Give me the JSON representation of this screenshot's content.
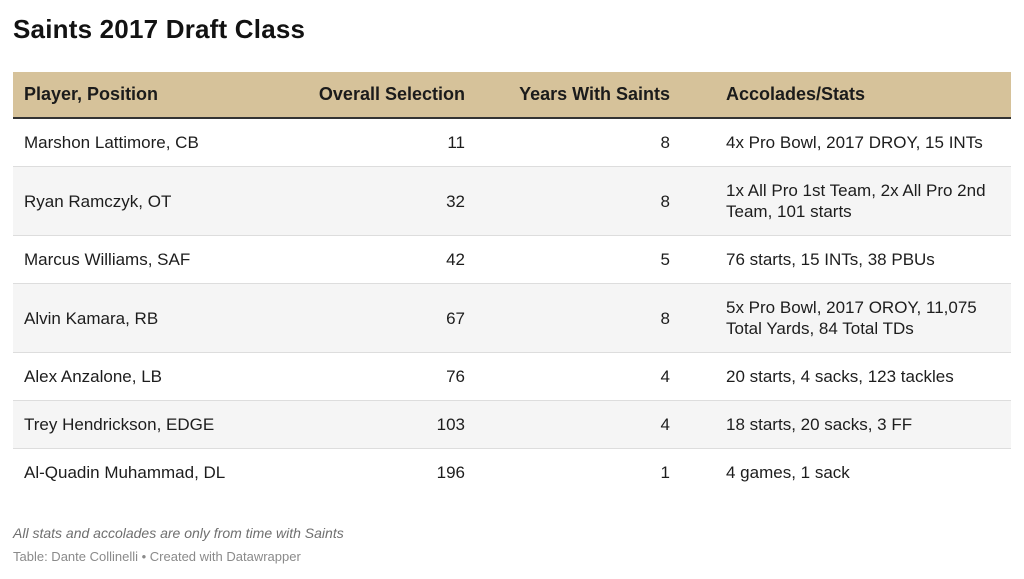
{
  "title": "Saints 2017 Draft Class",
  "columns": {
    "player": "Player, Position",
    "overall": "Overall Selection",
    "years": "Years With Saints",
    "accolades": "Accolades/Stats"
  },
  "rows": [
    {
      "player": "Marshon Lattimore, CB",
      "overall": "11",
      "years": "8",
      "accolades": "4x Pro Bowl, 2017 DROY, 15 INTs"
    },
    {
      "player": "Ryan Ramczyk, OT",
      "overall": "32",
      "years": "8",
      "accolades": "1x All Pro 1st Team, 2x All Pro 2nd Team, 101 starts"
    },
    {
      "player": "Marcus Williams, SAF",
      "overall": "42",
      "years": "5",
      "accolades": "76 starts, 15 INTs, 38 PBUs"
    },
    {
      "player": "Alvin Kamara, RB",
      "overall": "67",
      "years": "8",
      "accolades": "5x Pro Bowl, 2017 OROY, 11,075 Total Yards, 84 Total TDs"
    },
    {
      "player": "Alex Anzalone, LB",
      "overall": "76",
      "years": "4",
      "accolades": "20 starts, 4 sacks, 123 tackles"
    },
    {
      "player": "Trey Hendrickson, EDGE",
      "overall": "103",
      "years": "4",
      "accolades": "18 starts, 20 sacks, 3 FF"
    },
    {
      "player": "Al-Quadin Muhammad, DL",
      "overall": "196",
      "years": "1",
      "accolades": "4 games, 1 sack"
    }
  ],
  "note": "All stats and accolades are only from time with Saints",
  "source": "Table: Dante Collinelli • Created with Datawrapper",
  "colors": {
    "header_bg": "#d6c29a",
    "stripe_bg": "#f5f5f5"
  }
}
